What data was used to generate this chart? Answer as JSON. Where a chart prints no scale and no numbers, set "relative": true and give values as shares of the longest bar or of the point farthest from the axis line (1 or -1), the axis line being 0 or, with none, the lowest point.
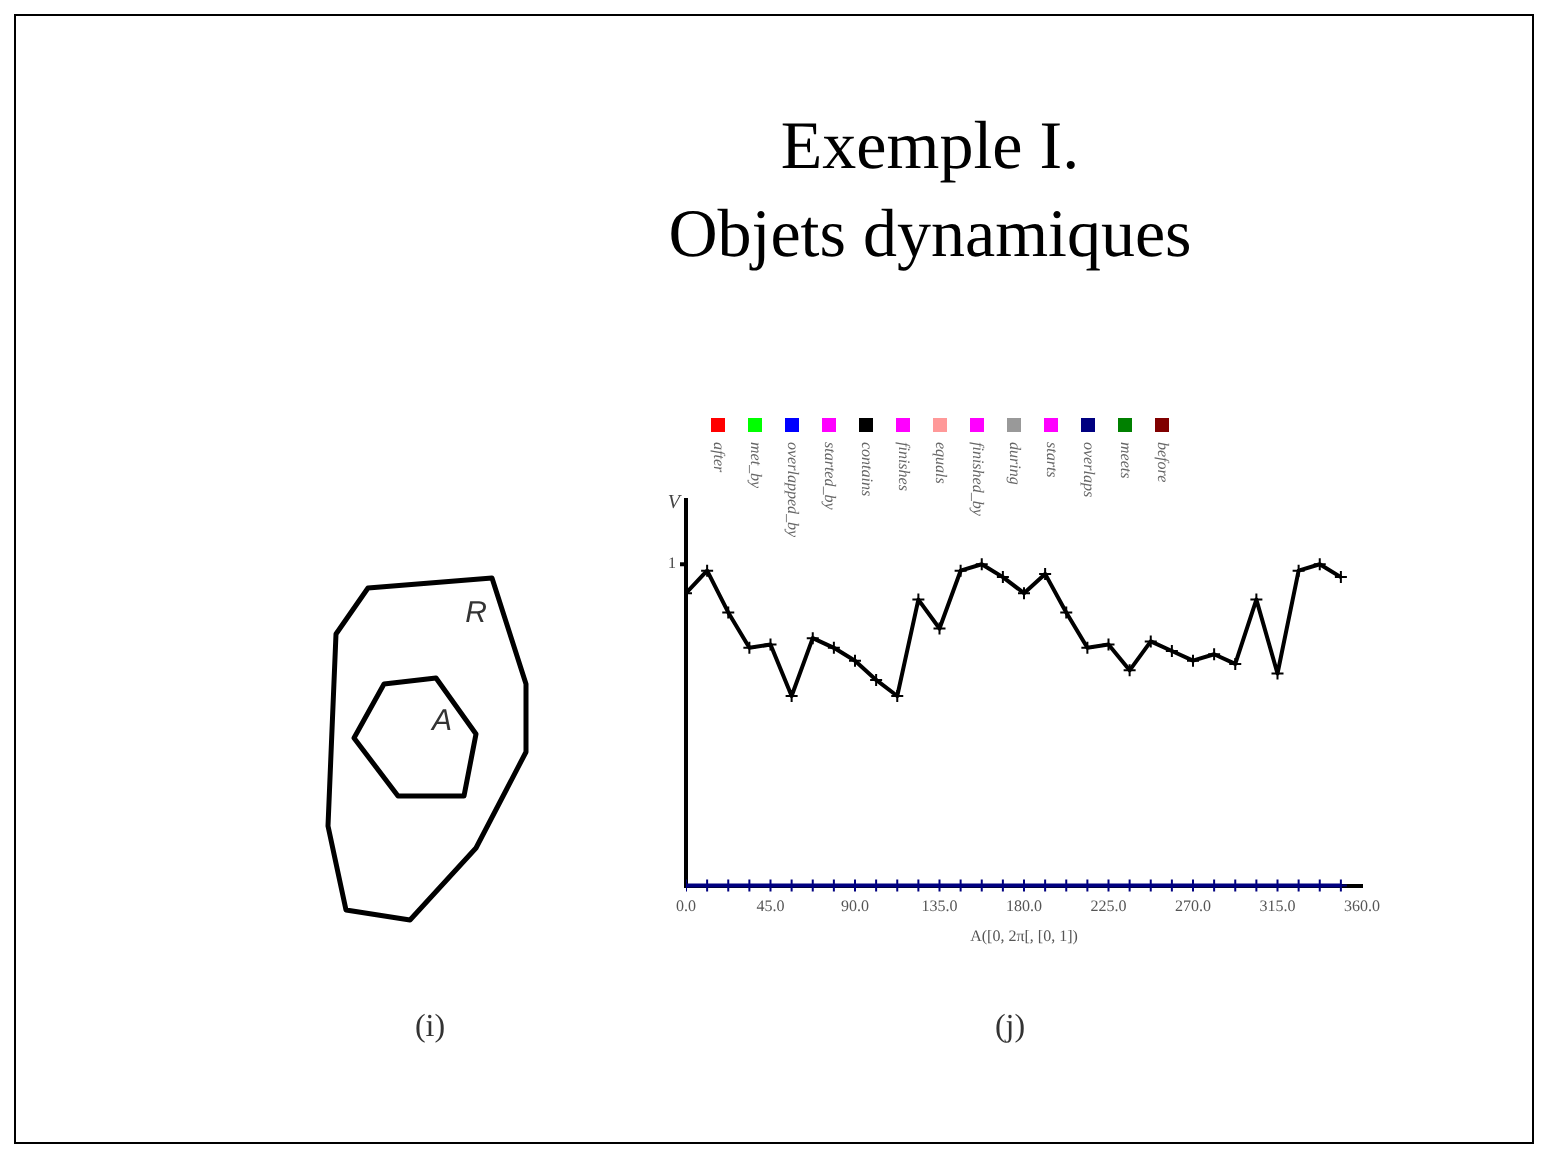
{
  "chart_data": {
    "type": "line",
    "title": "Exemple I.\nObjets dynamiques",
    "xlabel": "A([0, 2π[, [0, 1])",
    "ylabel": "V",
    "x": [
      0,
      11.25,
      22.5,
      33.75,
      45,
      56.25,
      67.5,
      78.75,
      90,
      101.25,
      112.5,
      123.75,
      135,
      146.25,
      157.5,
      168.75,
      180,
      191.25,
      202.5,
      213.75,
      225,
      236.25,
      247.5,
      258.75,
      270,
      281.25,
      292.5,
      303.75,
      315,
      326.25,
      337.5,
      348.75
    ],
    "series": [
      {
        "name": "after",
        "color": "#ff0000",
        "values": [
          null,
          null,
          null,
          null,
          null,
          null,
          null,
          null,
          null,
          null,
          null,
          null,
          null,
          null,
          null,
          null,
          null,
          null,
          null,
          null,
          null,
          null,
          null,
          null,
          null,
          null,
          null,
          null,
          null,
          null,
          null,
          null
        ]
      },
      {
        "name": "met_by",
        "color": "#00ff00",
        "values": [
          null,
          null,
          null,
          null,
          null,
          null,
          null,
          null,
          null,
          null,
          null,
          null,
          null,
          null,
          null,
          null,
          null,
          null,
          null,
          null,
          null,
          null,
          null,
          null,
          null,
          null,
          null,
          null,
          null,
          null,
          null,
          null
        ]
      },
      {
        "name": "overlapped_by",
        "color": "#0000ff",
        "values": [
          null,
          null,
          null,
          null,
          null,
          null,
          null,
          null,
          null,
          null,
          null,
          null,
          null,
          null,
          null,
          null,
          null,
          null,
          null,
          null,
          null,
          null,
          null,
          null,
          null,
          null,
          null,
          null,
          null,
          null,
          null,
          null
        ]
      },
      {
        "name": "started_by",
        "color": "#ff00ff",
        "values": [
          null,
          null,
          null,
          null,
          null,
          null,
          null,
          null,
          null,
          null,
          null,
          null,
          null,
          null,
          null,
          null,
          null,
          null,
          null,
          null,
          null,
          null,
          null,
          null,
          null,
          null,
          null,
          null,
          null,
          null,
          null,
          null
        ]
      },
      {
        "name": "contains",
        "color": "#000000",
        "values": [
          0.91,
          0.98,
          0.85,
          0.74,
          0.75,
          0.59,
          0.77,
          0.74,
          0.7,
          0.64,
          0.59,
          0.89,
          0.8,
          0.98,
          1.0,
          0.96,
          0.91,
          0.97,
          0.85,
          0.74,
          0.75,
          0.67,
          0.76,
          0.73,
          0.7,
          0.72,
          0.69,
          0.89,
          0.66,
          0.98,
          1.0,
          0.96
        ]
      },
      {
        "name": "finishes",
        "color": "#ff00ff",
        "values": [
          null,
          null,
          null,
          null,
          null,
          null,
          null,
          null,
          null,
          null,
          null,
          null,
          null,
          null,
          null,
          null,
          null,
          null,
          null,
          null,
          null,
          null,
          null,
          null,
          null,
          null,
          null,
          null,
          null,
          null,
          null,
          null
        ]
      },
      {
        "name": "equals",
        "color": "#ff9999",
        "values": [
          null,
          null,
          null,
          null,
          null,
          null,
          null,
          null,
          null,
          null,
          null,
          null,
          null,
          null,
          null,
          null,
          null,
          null,
          null,
          null,
          null,
          null,
          null,
          null,
          null,
          null,
          null,
          null,
          null,
          null,
          null,
          null
        ]
      },
      {
        "name": "finished_by",
        "color": "#ff00ff",
        "values": [
          null,
          null,
          null,
          null,
          null,
          null,
          null,
          null,
          null,
          null,
          null,
          null,
          null,
          null,
          null,
          null,
          null,
          null,
          null,
          null,
          null,
          null,
          null,
          null,
          null,
          null,
          null,
          null,
          null,
          null,
          null,
          null
        ]
      },
      {
        "name": "during",
        "color": "#999999",
        "values": [
          null,
          null,
          null,
          null,
          null,
          null,
          null,
          null,
          null,
          null,
          null,
          null,
          null,
          null,
          null,
          null,
          null,
          null,
          null,
          null,
          null,
          null,
          null,
          null,
          null,
          null,
          null,
          null,
          null,
          null,
          null,
          null
        ]
      },
      {
        "name": "starts",
        "color": "#ff00ff",
        "values": [
          null,
          null,
          null,
          null,
          null,
          null,
          null,
          null,
          null,
          null,
          null,
          null,
          null,
          null,
          null,
          null,
          null,
          null,
          null,
          null,
          null,
          null,
          null,
          null,
          null,
          null,
          null,
          null,
          null,
          null,
          null,
          null
        ]
      },
      {
        "name": "overlaps",
        "color": "#000080",
        "values": [
          0,
          0,
          0,
          0,
          0,
          0,
          0,
          0,
          0,
          0,
          0,
          0,
          0,
          0,
          0,
          0,
          0,
          0,
          0,
          0,
          0,
          0,
          0,
          0,
          0,
          0,
          0,
          0,
          0,
          0,
          0,
          0
        ]
      },
      {
        "name": "meets",
        "color": "#008000",
        "values": [
          null,
          null,
          null,
          null,
          null,
          null,
          null,
          null,
          null,
          null,
          null,
          null,
          null,
          null,
          null,
          null,
          null,
          null,
          null,
          null,
          null,
          null,
          null,
          null,
          null,
          null,
          null,
          null,
          null,
          null,
          null,
          null
        ]
      },
      {
        "name": "before",
        "color": "#800000",
        "values": [
          null,
          null,
          null,
          null,
          null,
          null,
          null,
          null,
          null,
          null,
          null,
          null,
          null,
          null,
          null,
          null,
          null,
          null,
          null,
          null,
          null,
          null,
          null,
          null,
          null,
          null,
          null,
          null,
          null,
          null,
          null,
          null
        ]
      }
    ],
    "xlim": [
      0,
      360
    ],
    "xticks": [
      {
        "value": 0,
        "label": "0.0"
      },
      {
        "value": 45,
        "label": "45.0"
      },
      {
        "value": 90,
        "label": "90.0"
      },
      {
        "value": 135,
        "label": "135.0"
      },
      {
        "value": 180,
        "label": "180.0"
      },
      {
        "value": 225,
        "label": "225.0"
      },
      {
        "value": 270,
        "label": "270.0"
      },
      {
        "value": 315,
        "label": "315.0"
      },
      {
        "value": 360,
        "label": "360.0"
      }
    ],
    "relative": true,
    "grid": false,
    "legend": "top",
    "marker": "cross",
    "annotations": [
      "(j)",
      "(i)",
      "R",
      "A",
      "1"
    ]
  }
}
